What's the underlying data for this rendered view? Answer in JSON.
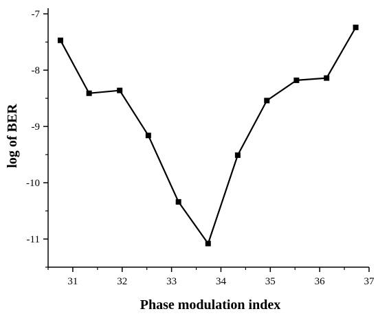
{
  "chart_data": {
    "type": "line",
    "title": "",
    "xlabel": "Phase modulation index",
    "ylabel": "log of BER",
    "xlim": [
      30.5,
      37
    ],
    "ylim": [
      -11.5,
      -6.9
    ],
    "xticks": [
      31,
      32,
      33,
      34,
      35,
      36,
      37
    ],
    "yticks": [
      -7,
      -8,
      -9,
      -10,
      -11
    ],
    "xtick_labels": [
      "31",
      "32",
      "33",
      "34",
      "35",
      "36",
      "37"
    ],
    "ytick_labels": [
      "-7",
      "-8",
      "-9",
      "-10",
      "-11"
    ],
    "grid": false,
    "legend": "none",
    "series": [
      {
        "marker": "square",
        "color": "#000000",
        "x": [
          30.75,
          31.33,
          31.95,
          32.53,
          33.14,
          33.74,
          34.34,
          34.93,
          35.53,
          36.14,
          36.73
        ],
        "y": [
          -7.47,
          -8.41,
          -8.36,
          -9.16,
          -10.34,
          -11.08,
          -9.51,
          -8.54,
          -8.18,
          -8.14,
          -7.24
        ]
      }
    ]
  }
}
